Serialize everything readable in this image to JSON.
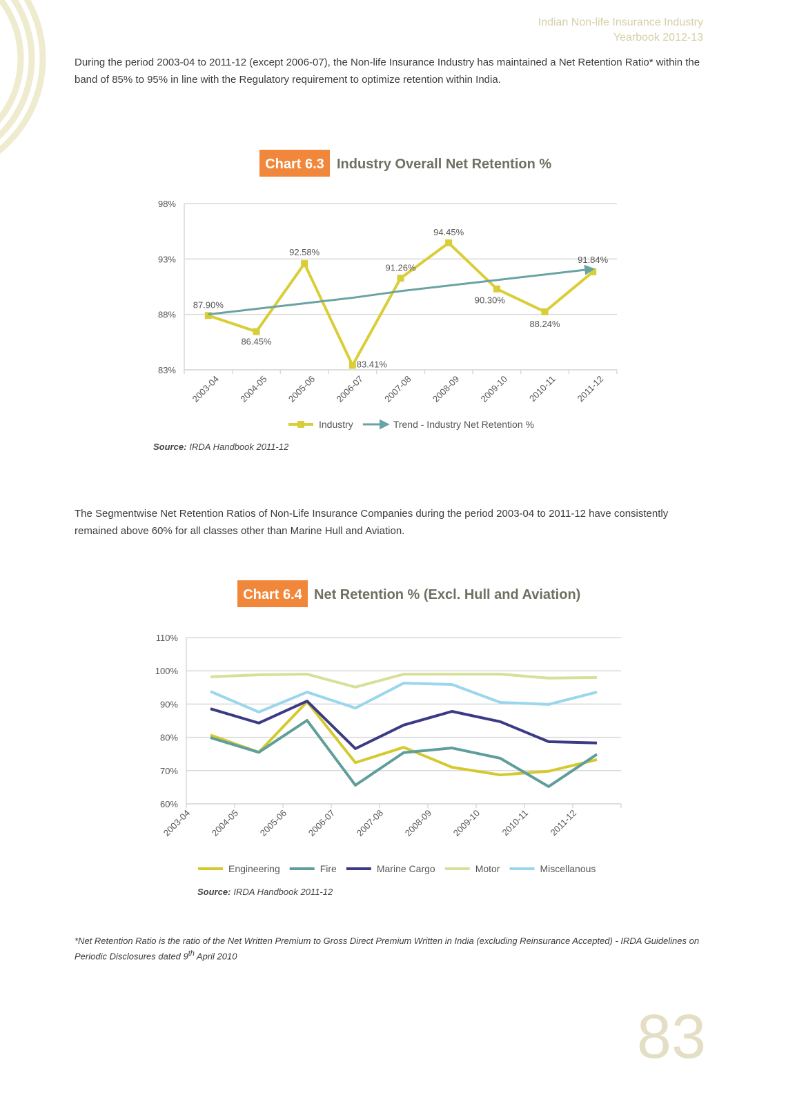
{
  "header": {
    "line1": "Indian Non-life Insurance Industry",
    "line2": "Yearbook 2012-13"
  },
  "paragraphs": [
    "During the period 2003-04 to 2011-12 (except 2006-07), the Non-life Insurance Industry has maintained a Net Retention Ratio* within the band of 85% to 95% in line with the Regulatory requirement to optimize retention within India.",
    "The Segmentwise Net Retention Ratios of Non-Life Insurance Companies during the period 2003-04 to 2011-12 have consistently remained above 60% for all classes other than Marine Hull and Aviation."
  ],
  "chart_data": [
    {
      "type": "line",
      "label": "Chart 6.3",
      "title": "Industry Overall Net Retention %",
      "categories": [
        "2003-04",
        "2004-05",
        "2005-06",
        "2006-07",
        "2007-08",
        "2008-09",
        "2009-10",
        "2010-11",
        "2011-12"
      ],
      "series": [
        {
          "name": "Industry",
          "color": "#d9cd38",
          "marker": "square",
          "values": [
            87.9,
            86.45,
            92.58,
            83.41,
            91.26,
            94.45,
            90.3,
            88.24,
            91.84
          ],
          "value_labels": [
            "87.90%",
            "86.45%",
            "92.58%",
            "83.41%",
            "91.26%",
            "94.45%",
            "90.30%",
            "88.24%",
            "91.84%"
          ]
        },
        {
          "name": "Trend - Industry Net Retention %",
          "color": "#6aa3a3",
          "marker": "arrow",
          "values": [
            88.0,
            88.5,
            89.0,
            89.5,
            90.1,
            90.6,
            91.1,
            91.6,
            92.1
          ]
        }
      ],
      "ylim": [
        83,
        98
      ],
      "yticks": [
        {
          "value": 83,
          "label": "83%"
        },
        {
          "value": 88,
          "label": "88%"
        },
        {
          "value": 93,
          "label": "93%"
        },
        {
          "value": 98,
          "label": "98%"
        }
      ],
      "grid": true,
      "legend": "bottom",
      "source_label": "Source:",
      "source": "IRDA Handbook 2011-12"
    },
    {
      "type": "line",
      "label": "Chart 6.4",
      "title": "Net Retention % (Excl. Hull and Aviation)",
      "categories": [
        "2003-04",
        "2004-05",
        "2005-06",
        "2006-07",
        "2007-08",
        "2008-09",
        "2009-10",
        "2010-11",
        "2011-12"
      ],
      "series": [
        {
          "name": "Engineering",
          "color": "#d4c92f",
          "values": [
            80.7,
            75.5,
            90.7,
            72.4,
            77.0,
            71.0,
            68.7,
            69.8,
            73.3
          ]
        },
        {
          "name": "Fire",
          "color": "#5f9e9a",
          "values": [
            79.9,
            75.5,
            85.1,
            65.6,
            75.4,
            76.8,
            73.7,
            65.2,
            74.9
          ]
        },
        {
          "name": "Marine Cargo",
          "color": "#3b3a85",
          "values": [
            88.6,
            84.3,
            90.9,
            76.6,
            83.7,
            87.8,
            84.7,
            78.7,
            78.3
          ]
        },
        {
          "name": "Motor",
          "color": "#d6e09a",
          "values": [
            98.2,
            98.8,
            99.0,
            95.1,
            99.0,
            99.0,
            99.0,
            97.8,
            98.0
          ]
        },
        {
          "name": "Miscellanous",
          "color": "#9ad6ec",
          "values": [
            93.8,
            87.6,
            93.6,
            88.8,
            96.3,
            95.9,
            90.5,
            89.9,
            93.6
          ]
        }
      ],
      "ylim": [
        60,
        110
      ],
      "yticks": [
        {
          "value": 60,
          "label": "60%"
        },
        {
          "value": 70,
          "label": "70%"
        },
        {
          "value": 80,
          "label": "80%"
        },
        {
          "value": 90,
          "label": "90%"
        },
        {
          "value": 100,
          "label": "100%"
        },
        {
          "value": 110,
          "label": "110%"
        }
      ],
      "grid": true,
      "legend": "bottom",
      "source_label": "Source:",
      "source": "IRDA Handbook 2011-12"
    }
  ],
  "footnote": {
    "text_before": "*Net Retention Ratio is the ratio of the Net Written Premium to Gross Direct Premium Written in India (excluding Reinsurance Accepted) - IRDA Guidelines on Periodic Disclosures dated 9",
    "superscript": "th",
    "text_after": " April 2010"
  },
  "page_number": "83"
}
